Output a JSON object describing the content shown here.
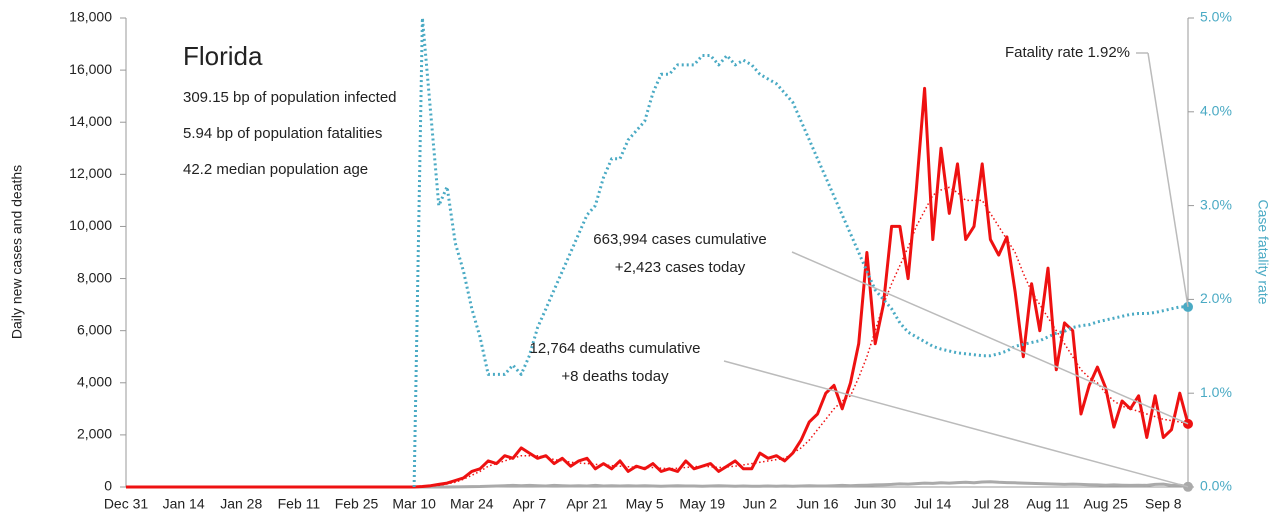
{
  "chart_data": {
    "type": "line",
    "title": "Florida",
    "subtitle_lines": [
      "309.15 bp of population infected",
      "5.94 bp of population fatalities",
      "42.2 median population age"
    ],
    "ylabel": "Daily new cases and deaths",
    "y2label": "Case fatality rate",
    "annotations": [
      "663,994 cases cumulative",
      "+2,423 cases today",
      "12,764 deaths cumulative",
      "+8 deaths today",
      "Fatality rate 1.92%"
    ],
    "categories": [
      "Dec 31",
      null,
      null,
      null,
      null,
      null,
      null,
      "Jan 14",
      null,
      null,
      null,
      null,
      null,
      null,
      "Jan 28",
      null,
      null,
      null,
      null,
      null,
      null,
      "Feb 11",
      null,
      null,
      null,
      null,
      null,
      null,
      "Feb 25",
      null,
      null,
      null,
      null,
      null,
      null,
      "Mar 10",
      null,
      null,
      null,
      null,
      null,
      null,
      "Mar 24",
      null,
      null,
      null,
      null,
      null,
      null,
      "Apr 7",
      null,
      null,
      null,
      null,
      null,
      null,
      "Apr 21",
      null,
      null,
      null,
      null,
      null,
      null,
      "May 5",
      null,
      null,
      null,
      null,
      null,
      null,
      "May 19",
      null,
      null,
      null,
      null,
      null,
      null,
      "Jun 2",
      null,
      null,
      null,
      null,
      null,
      null,
      "Jun 16",
      null,
      null,
      null,
      null,
      null,
      null,
      "Jun 30",
      null,
      null,
      null,
      null,
      null,
      null,
      "Jul 14",
      null,
      null,
      null,
      null,
      null,
      null,
      "Jul 28",
      null,
      null,
      null,
      null,
      null,
      null,
      "Aug 11",
      null,
      null,
      null,
      null,
      null,
      null,
      "Aug 25",
      null,
      null,
      null,
      null,
      null,
      null,
      "Sep 8",
      null,
      null,
      null
    ],
    "ylim": [
      0,
      18000
    ],
    "yticks": [
      0,
      {
        "value": 2000,
        "label": "2,000"
      },
      {
        "value": 4000,
        "label": "4,000"
      },
      {
        "value": 6000,
        "label": "6,000"
      },
      {
        "value": 8000,
        "label": "8,000"
      },
      {
        "value": 10000,
        "label": "10,000"
      },
      {
        "value": 12000,
        "label": "12,000"
      },
      {
        "value": 14000,
        "label": "14,000"
      },
      {
        "value": 16000,
        "label": "16,000"
      },
      {
        "value": 18000,
        "label": "18,000"
      }
    ],
    "y2lim": [
      0,
      5
    ],
    "y2ticks": [
      {
        "value": 0,
        "label": "0.0%"
      },
      {
        "value": 1,
        "label": "1.0%"
      },
      {
        "value": 2,
        "label": "2.0%"
      },
      {
        "value": 3,
        "label": "3.0%"
      },
      {
        "value": 4,
        "label": "4.0%"
      },
      {
        "value": 5,
        "label": "5.0%"
      }
    ],
    "series": [
      {
        "color": "#aaaaaa",
        "style": "solid",
        "values": [
          0,
          0,
          0,
          0,
          0,
          0,
          0,
          0,
          0,
          0,
          0,
          0,
          0,
          0,
          0,
          0,
          0,
          0,
          0,
          0,
          0,
          0,
          0,
          0,
          0,
          0,
          0,
          0,
          0,
          0,
          0,
          0,
          0,
          0,
          0,
          0,
          0,
          0,
          0,
          0,
          5,
          10,
          15,
          20,
          30,
          40,
          50,
          60,
          50,
          60,
          50,
          40,
          60,
          50,
          40,
          50,
          40,
          60,
          40,
          50,
          40,
          50,
          40,
          50,
          40,
          30,
          40,
          50,
          40,
          40,
          30,
          40,
          50,
          40,
          30,
          40,
          30,
          30,
          40,
          30,
          40,
          30,
          40,
          50,
          40,
          40,
          50,
          60,
          50,
          60,
          70,
          80,
          90,
          100,
          120,
          110,
          130,
          150,
          140,
          160,
          150,
          170,
          180,
          160,
          190,
          200,
          180,
          170,
          160,
          150,
          140,
          130,
          120,
          110,
          100,
          110,
          100,
          90,
          80,
          70,
          80,
          70,
          60,
          70,
          60,
          100,
          110,
          60,
          70,
          8
        ]
      },
      {
        "color": "#ee1111",
        "style": "dotted",
        "values": [
          null,
          null,
          null,
          null,
          null,
          null,
          null,
          null,
          null,
          null,
          null,
          null,
          null,
          null,
          null,
          null,
          null,
          null,
          null,
          null,
          null,
          null,
          null,
          null,
          null,
          null,
          null,
          null,
          null,
          null,
          null,
          null,
          null,
          null,
          null,
          null,
          10,
          30,
          60,
          120,
          180,
          300,
          450,
          600,
          800,
          900,
          1000,
          1100,
          1200,
          1200,
          1200,
          1150,
          1050,
          1000,
          950,
          920,
          900,
          870,
          850,
          820,
          800,
          780,
          750,
          750,
          750,
          720,
          700,
          720,
          750,
          780,
          800,
          780,
          750,
          770,
          800,
          850,
          900,
          950,
          1000,
          1050,
          1100,
          1300,
          1500,
          1800,
          2200,
          2600,
          3000,
          3300,
          3500,
          4200,
          5000,
          6000,
          7000,
          7800,
          8500,
          9200,
          10000,
          10600,
          11200,
          11400,
          11500,
          11300,
          11000,
          11000,
          11000,
          10500,
          10000,
          9500,
          9000,
          8200,
          7500,
          7000,
          6500,
          6000,
          5500,
          5000,
          4500,
          4200,
          4000,
          3600,
          3300,
          3100,
          3000,
          2900,
          2800,
          2700,
          2600,
          2550,
          2500,
          2450
        ]
      },
      {
        "color": "#ee1111",
        "style": "solid",
        "values": [
          0,
          0,
          0,
          0,
          0,
          0,
          0,
          0,
          0,
          0,
          0,
          0,
          0,
          0,
          0,
          0,
          0,
          0,
          0,
          0,
          0,
          0,
          0,
          0,
          0,
          0,
          0,
          0,
          0,
          0,
          0,
          0,
          0,
          0,
          0,
          0,
          20,
          50,
          100,
          150,
          250,
          350,
          600,
          700,
          1000,
          900,
          1200,
          1100,
          1500,
          1300,
          1100,
          1200,
          900,
          1100,
          800,
          1000,
          1100,
          700,
          900,
          700,
          1000,
          600,
          800,
          700,
          900,
          600,
          700,
          600,
          1000,
          700,
          800,
          900,
          600,
          800,
          1000,
          700,
          700,
          1300,
          1100,
          1200,
          1000,
          1300,
          1800,
          2500,
          2800,
          3600,
          3900,
          3000,
          4000,
          5500,
          9000,
          5500,
          7000,
          10000,
          10000,
          8000,
          11400,
          15300,
          9500,
          13000,
          10500,
          12400,
          9500,
          10000,
          12400,
          9500,
          8900,
          9600,
          7500,
          5000,
          7800,
          6000,
          8400,
          4500,
          6300,
          6000,
          2800,
          3900,
          4600,
          3800,
          2300,
          3300,
          3000,
          3500,
          1900,
          3500,
          1900,
          2200,
          3600,
          2423
        ]
      },
      {
        "color": "#4aaac4",
        "style": "dotted",
        "axis": "y2",
        "values": [
          null,
          null,
          null,
          null,
          null,
          null,
          null,
          null,
          null,
          null,
          null,
          null,
          null,
          null,
          null,
          null,
          null,
          null,
          null,
          null,
          null,
          null,
          null,
          null,
          null,
          null,
          null,
          null,
          null,
          null,
          null,
          null,
          null,
          null,
          null,
          0,
          5.0,
          4.0,
          3.0,
          3.2,
          2.6,
          2.3,
          1.9,
          1.6,
          1.2,
          1.2,
          1.2,
          1.3,
          1.2,
          1.4,
          1.7,
          1.9,
          2.1,
          2.3,
          2.5,
          2.7,
          2.9,
          3.0,
          3.3,
          3.5,
          3.5,
          3.7,
          3.8,
          3.9,
          4.2,
          4.4,
          4.4,
          4.5,
          4.5,
          4.5,
          4.6,
          4.6,
          4.5,
          4.6,
          4.5,
          4.55,
          4.5,
          4.4,
          4.35,
          4.3,
          4.2,
          4.1,
          3.9,
          3.7,
          3.5,
          3.3,
          3.1,
          2.9,
          2.7,
          2.5,
          2.3,
          2.1,
          2.0,
          1.9,
          1.75,
          1.65,
          1.6,
          1.55,
          1.5,
          1.47,
          1.45,
          1.43,
          1.42,
          1.41,
          1.4,
          1.4,
          1.42,
          1.45,
          1.5,
          1.52,
          1.54,
          1.56,
          1.6,
          1.64,
          1.66,
          1.7,
          1.72,
          1.73,
          1.76,
          1.78,
          1.8,
          1.82,
          1.84,
          1.85,
          1.85,
          1.86,
          1.88,
          1.9,
          1.92,
          1.92
        ]
      }
    ]
  }
}
